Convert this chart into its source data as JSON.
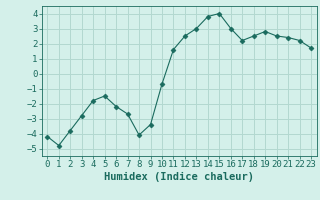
{
  "x": [
    0,
    1,
    2,
    3,
    4,
    5,
    6,
    7,
    8,
    9,
    10,
    11,
    12,
    13,
    14,
    15,
    16,
    17,
    18,
    19,
    20,
    21,
    22,
    23
  ],
  "y": [
    -4.2,
    -4.8,
    -3.8,
    -2.8,
    -1.8,
    -1.5,
    -2.2,
    -2.7,
    -4.1,
    -3.4,
    -0.7,
    1.6,
    2.5,
    3.0,
    3.8,
    4.0,
    3.0,
    2.2,
    2.5,
    2.8,
    2.5,
    2.4,
    2.2,
    1.7
  ],
  "line_color": "#1a6b5e",
  "marker": "D",
  "marker_size": 2.5,
  "bg_color": "#d4f0ea",
  "grid_color": "#b2d8d0",
  "xlabel": "Humidex (Indice chaleur)",
  "xlim": [
    -0.5,
    23.5
  ],
  "ylim": [
    -5.5,
    4.5
  ],
  "yticks": [
    -5,
    -4,
    -3,
    -2,
    -1,
    0,
    1,
    2,
    3,
    4
  ],
  "xticks": [
    0,
    1,
    2,
    3,
    4,
    5,
    6,
    7,
    8,
    9,
    10,
    11,
    12,
    13,
    14,
    15,
    16,
    17,
    18,
    19,
    20,
    21,
    22,
    23
  ],
  "tick_fontsize": 6.5,
  "xlabel_fontsize": 7.5,
  "tick_color": "#1a6b5e",
  "label_color": "#1a6b5e"
}
